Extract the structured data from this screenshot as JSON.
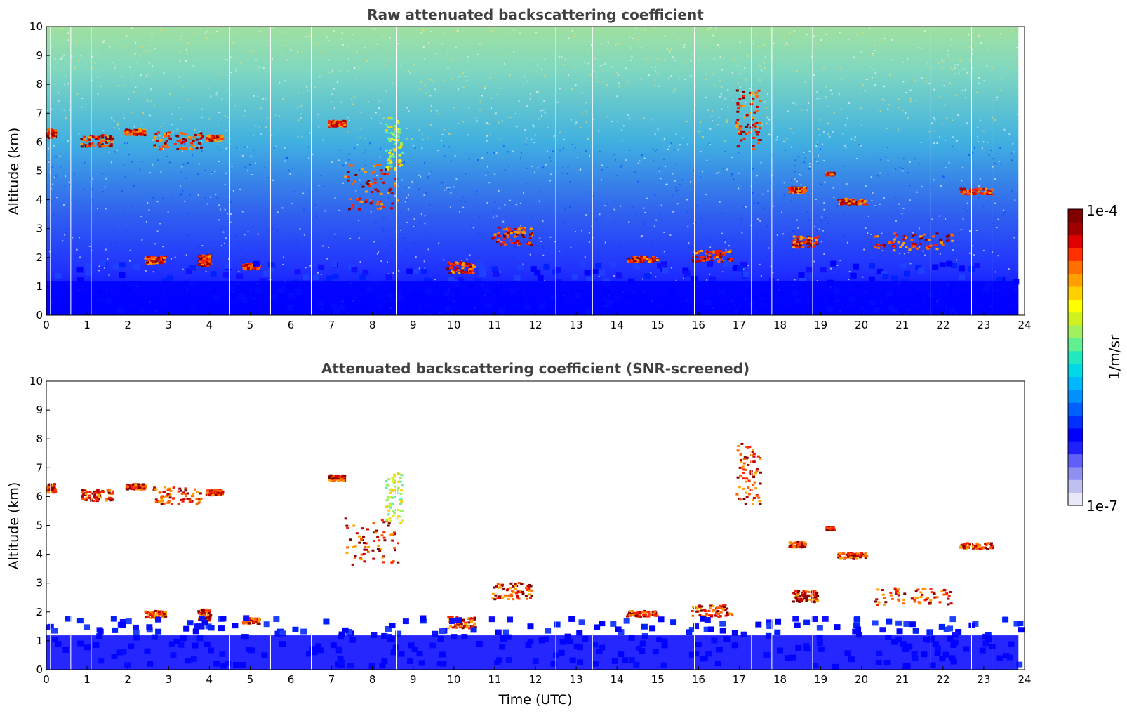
{
  "chart_data": [
    {
      "type": "heatmap",
      "id": "raw",
      "title": "Raw attenuated backscattering coefficient",
      "xlabel": "",
      "ylabel": "Altitude (km)",
      "xlim": [
        0,
        24
      ],
      "ylim": [
        0,
        10
      ],
      "xticks": [
        0,
        1,
        2,
        3,
        4,
        5,
        6,
        7,
        8,
        9,
        10,
        11,
        12,
        13,
        14,
        15,
        16,
        17,
        18,
        19,
        20,
        21,
        22,
        23,
        24
      ],
      "yticks": [
        0,
        1,
        2,
        3,
        4,
        5,
        6,
        7,
        8,
        9,
        10
      ],
      "data_end_time": 23.85,
      "background_noise": true,
      "features": [
        {
          "t0": 0.0,
          "t1": 0.2,
          "z0": 6.1,
          "z1": 6.4,
          "level": "high"
        },
        {
          "t0": 0.8,
          "t1": 1.6,
          "z0": 5.8,
          "z1": 6.2,
          "level": "high"
        },
        {
          "t0": 1.9,
          "t1": 2.4,
          "z0": 6.2,
          "z1": 6.4,
          "level": "high"
        },
        {
          "t0": 2.6,
          "t1": 3.8,
          "z0": 5.7,
          "z1": 6.3,
          "level": "high"
        },
        {
          "t0": 3.9,
          "t1": 4.3,
          "z0": 6.0,
          "z1": 6.2,
          "level": "high"
        },
        {
          "t0": 6.9,
          "t1": 7.3,
          "z0": 6.5,
          "z1": 6.7,
          "level": "high"
        },
        {
          "t0": 7.3,
          "t1": 8.6,
          "z0": 3.6,
          "z1": 5.2,
          "level": "high"
        },
        {
          "t0": 8.3,
          "t1": 8.7,
          "z0": 5.0,
          "z1": 6.8,
          "level": "mid"
        },
        {
          "t0": 2.4,
          "t1": 2.9,
          "z0": 1.75,
          "z1": 2.0,
          "level": "high"
        },
        {
          "t0": 3.7,
          "t1": 4.0,
          "z0": 1.65,
          "z1": 2.05,
          "level": "high"
        },
        {
          "t0": 4.8,
          "t1": 5.2,
          "z0": 1.55,
          "z1": 1.75,
          "level": "high"
        },
        {
          "t0": 9.8,
          "t1": 10.5,
          "z0": 1.4,
          "z1": 1.8,
          "level": "high"
        },
        {
          "t0": 10.9,
          "t1": 11.9,
          "z0": 2.4,
          "z1": 3.0,
          "level": "high"
        },
        {
          "t0": 14.2,
          "t1": 15.0,
          "z0": 1.8,
          "z1": 2.0,
          "level": "high"
        },
        {
          "t0": 15.8,
          "t1": 16.8,
          "z0": 1.8,
          "z1": 2.2,
          "level": "high"
        },
        {
          "t0": 16.9,
          "t1": 17.5,
          "z0": 5.7,
          "z1": 7.8,
          "level": "high"
        },
        {
          "t0": 18.2,
          "t1": 18.6,
          "z0": 4.2,
          "z1": 4.4,
          "level": "high"
        },
        {
          "t0": 18.3,
          "t1": 18.9,
          "z0": 2.3,
          "z1": 2.7,
          "level": "high"
        },
        {
          "t0": 19.1,
          "t1": 19.3,
          "z0": 4.8,
          "z1": 4.9,
          "level": "high"
        },
        {
          "t0": 19.4,
          "t1": 20.1,
          "z0": 3.8,
          "z1": 4.0,
          "level": "high"
        },
        {
          "t0": 20.3,
          "t1": 22.2,
          "z0": 2.2,
          "z1": 2.8,
          "level": "high"
        },
        {
          "t0": 22.4,
          "t1": 23.2,
          "z0": 4.15,
          "z1": 4.35,
          "level": "high"
        },
        {
          "t0": 0.0,
          "t1": 23.85,
          "z0": 0.0,
          "z1": 1.7,
          "level": "boundary"
        }
      ]
    },
    {
      "type": "heatmap",
      "id": "screened",
      "title": "Attenuated backscattering coefficient (SNR-screened)",
      "xlabel": "Time (UTC)",
      "ylabel": "Altitude (km)",
      "xlim": [
        0,
        24
      ],
      "ylim": [
        0,
        10
      ],
      "xticks": [
        0,
        1,
        2,
        3,
        4,
        5,
        6,
        7,
        8,
        9,
        10,
        11,
        12,
        13,
        14,
        15,
        16,
        17,
        18,
        19,
        20,
        21,
        22,
        23,
        24
      ],
      "yticks": [
        0,
        1,
        2,
        3,
        4,
        5,
        6,
        7,
        8,
        9,
        10
      ],
      "data_end_time": 23.85,
      "background_noise": false,
      "features": [
        {
          "t0": 0.0,
          "t1": 0.2,
          "z0": 6.1,
          "z1": 6.4,
          "level": "high"
        },
        {
          "t0": 0.8,
          "t1": 1.6,
          "z0": 5.8,
          "z1": 6.2,
          "level": "high"
        },
        {
          "t0": 1.9,
          "t1": 2.4,
          "z0": 6.2,
          "z1": 6.4,
          "level": "high"
        },
        {
          "t0": 2.6,
          "t1": 3.8,
          "z0": 5.7,
          "z1": 6.3,
          "level": "high"
        },
        {
          "t0": 3.9,
          "t1": 4.3,
          "z0": 6.0,
          "z1": 6.2,
          "level": "high"
        },
        {
          "t0": 6.9,
          "t1": 7.3,
          "z0": 6.5,
          "z1": 6.7,
          "level": "high"
        },
        {
          "t0": 7.3,
          "t1": 8.6,
          "z0": 3.6,
          "z1": 5.2,
          "level": "high"
        },
        {
          "t0": 8.3,
          "t1": 8.7,
          "z0": 5.0,
          "z1": 6.8,
          "level": "mid"
        },
        {
          "t0": 2.4,
          "t1": 2.9,
          "z0": 1.75,
          "z1": 2.0,
          "level": "high"
        },
        {
          "t0": 3.7,
          "t1": 4.0,
          "z0": 1.65,
          "z1": 2.05,
          "level": "high"
        },
        {
          "t0": 4.8,
          "t1": 5.2,
          "z0": 1.55,
          "z1": 1.75,
          "level": "high"
        },
        {
          "t0": 9.8,
          "t1": 10.5,
          "z0": 1.4,
          "z1": 1.8,
          "level": "high"
        },
        {
          "t0": 10.9,
          "t1": 11.9,
          "z0": 2.4,
          "z1": 3.0,
          "level": "high"
        },
        {
          "t0": 14.2,
          "t1": 15.0,
          "z0": 1.8,
          "z1": 2.0,
          "level": "high"
        },
        {
          "t0": 15.8,
          "t1": 16.8,
          "z0": 1.8,
          "z1": 2.2,
          "level": "high"
        },
        {
          "t0": 16.9,
          "t1": 17.5,
          "z0": 5.7,
          "z1": 7.8,
          "level": "high"
        },
        {
          "t0": 18.2,
          "t1": 18.6,
          "z0": 4.2,
          "z1": 4.4,
          "level": "high"
        },
        {
          "t0": 18.3,
          "t1": 18.9,
          "z0": 2.3,
          "z1": 2.7,
          "level": "high"
        },
        {
          "t0": 19.1,
          "t1": 19.3,
          "z0": 4.8,
          "z1": 4.9,
          "level": "high"
        },
        {
          "t0": 19.4,
          "t1": 20.1,
          "z0": 3.8,
          "z1": 4.0,
          "level": "high"
        },
        {
          "t0": 20.3,
          "t1": 22.2,
          "z0": 2.2,
          "z1": 2.8,
          "level": "high"
        },
        {
          "t0": 22.4,
          "t1": 23.2,
          "z0": 4.15,
          "z1": 4.35,
          "level": "high"
        },
        {
          "t0": 0.0,
          "t1": 23.85,
          "z0": 0.0,
          "z1": 1.7,
          "level": "boundary"
        }
      ]
    }
  ],
  "colorbar": {
    "label": "1/m/sr",
    "max_label": "1e-4",
    "min_label": "1e-7",
    "colors": [
      "#e8e8f8",
      "#c0c0f0",
      "#9090f0",
      "#6060f8",
      "#2020ff",
      "#0000ff",
      "#0030ff",
      "#0060ff",
      "#0090ff",
      "#00b8ff",
      "#00d8e8",
      "#20e8c0",
      "#60f090",
      "#a0f060",
      "#d0f020",
      "#ffff00",
      "#ffd000",
      "#ffa000",
      "#ff7000",
      "#ff3000",
      "#e00000",
      "#a00000",
      "#800000"
    ]
  }
}
